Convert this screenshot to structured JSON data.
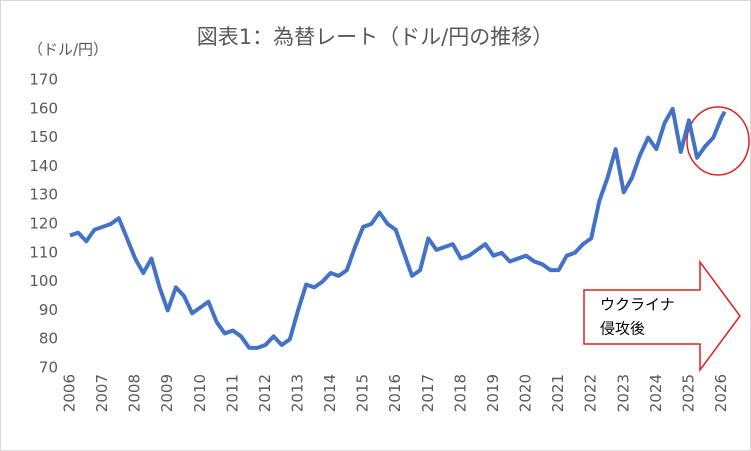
{
  "chart_data": {
    "type": "line",
    "title": "図表1：為替レート（ドル/円の推移）",
    "y_label": "（ドル/円）",
    "annotation": [
      "ウクライナ",
      "侵攻後"
    ],
    "x": [
      2006.0,
      2006.25,
      2006.5,
      2006.75,
      2007.0,
      2007.25,
      2007.5,
      2007.75,
      2008.0,
      2008.25,
      2008.5,
      2008.75,
      2009.0,
      2009.25,
      2009.5,
      2009.75,
      2010.0,
      2010.25,
      2010.5,
      2010.75,
      2011.0,
      2011.25,
      2011.5,
      2011.75,
      2012.0,
      2012.25,
      2012.5,
      2012.75,
      2013.0,
      2013.25,
      2013.5,
      2013.75,
      2014.0,
      2014.25,
      2014.5,
      2014.75,
      2015.0,
      2015.25,
      2015.5,
      2015.75,
      2016.0,
      2016.25,
      2016.5,
      2016.75,
      2017.0,
      2017.25,
      2017.5,
      2017.75,
      2018.0,
      2018.25,
      2018.5,
      2018.75,
      2019.0,
      2019.25,
      2019.5,
      2019.75,
      2020.0,
      2020.25,
      2020.5,
      2020.75,
      2021.0,
      2021.25,
      2021.5,
      2021.75,
      2022.0,
      2022.25,
      2022.5,
      2022.75,
      2023.0,
      2023.25,
      2023.5,
      2023.75,
      2024.0,
      2024.25,
      2024.5,
      2024.75,
      2025.0,
      2025.25,
      2025.5,
      2025.75,
      2026.0,
      2026.1
    ],
    "series": [
      {
        "color": "#4472c4",
        "values": [
          116,
          117,
          114,
          118,
          119,
          120,
          122,
          115,
          108,
          103,
          108,
          98,
          90,
          98,
          95,
          89,
          91,
          93,
          86,
          82,
          83,
          81,
          77,
          77,
          78,
          81,
          78,
          80,
          90,
          99,
          98,
          100,
          103,
          102,
          104,
          112,
          119,
          120,
          124,
          120,
          118,
          110,
          102,
          104,
          115,
          111,
          112,
          113,
          108,
          109,
          111,
          113,
          109,
          110,
          107,
          108,
          109,
          107,
          106,
          104,
          104,
          109,
          110,
          113,
          115,
          128,
          136,
          146,
          131,
          136,
          144,
          150,
          146,
          155,
          160,
          145,
          156,
          143,
          147,
          150,
          157,
          159
        ]
      }
    ],
    "xlim": [
      2006,
      2026.2
    ],
    "xticks": [
      2006,
      2007,
      2008,
      2009,
      2010,
      2011,
      2012,
      2013,
      2014,
      2015,
      2016,
      2017,
      2018,
      2019,
      2020,
      2021,
      2022,
      2023,
      2024,
      2025,
      2026
    ],
    "ylim": [
      70,
      170
    ],
    "yticks": [
      70,
      80,
      90,
      100,
      110,
      120,
      130,
      140,
      150,
      160,
      170
    ]
  }
}
